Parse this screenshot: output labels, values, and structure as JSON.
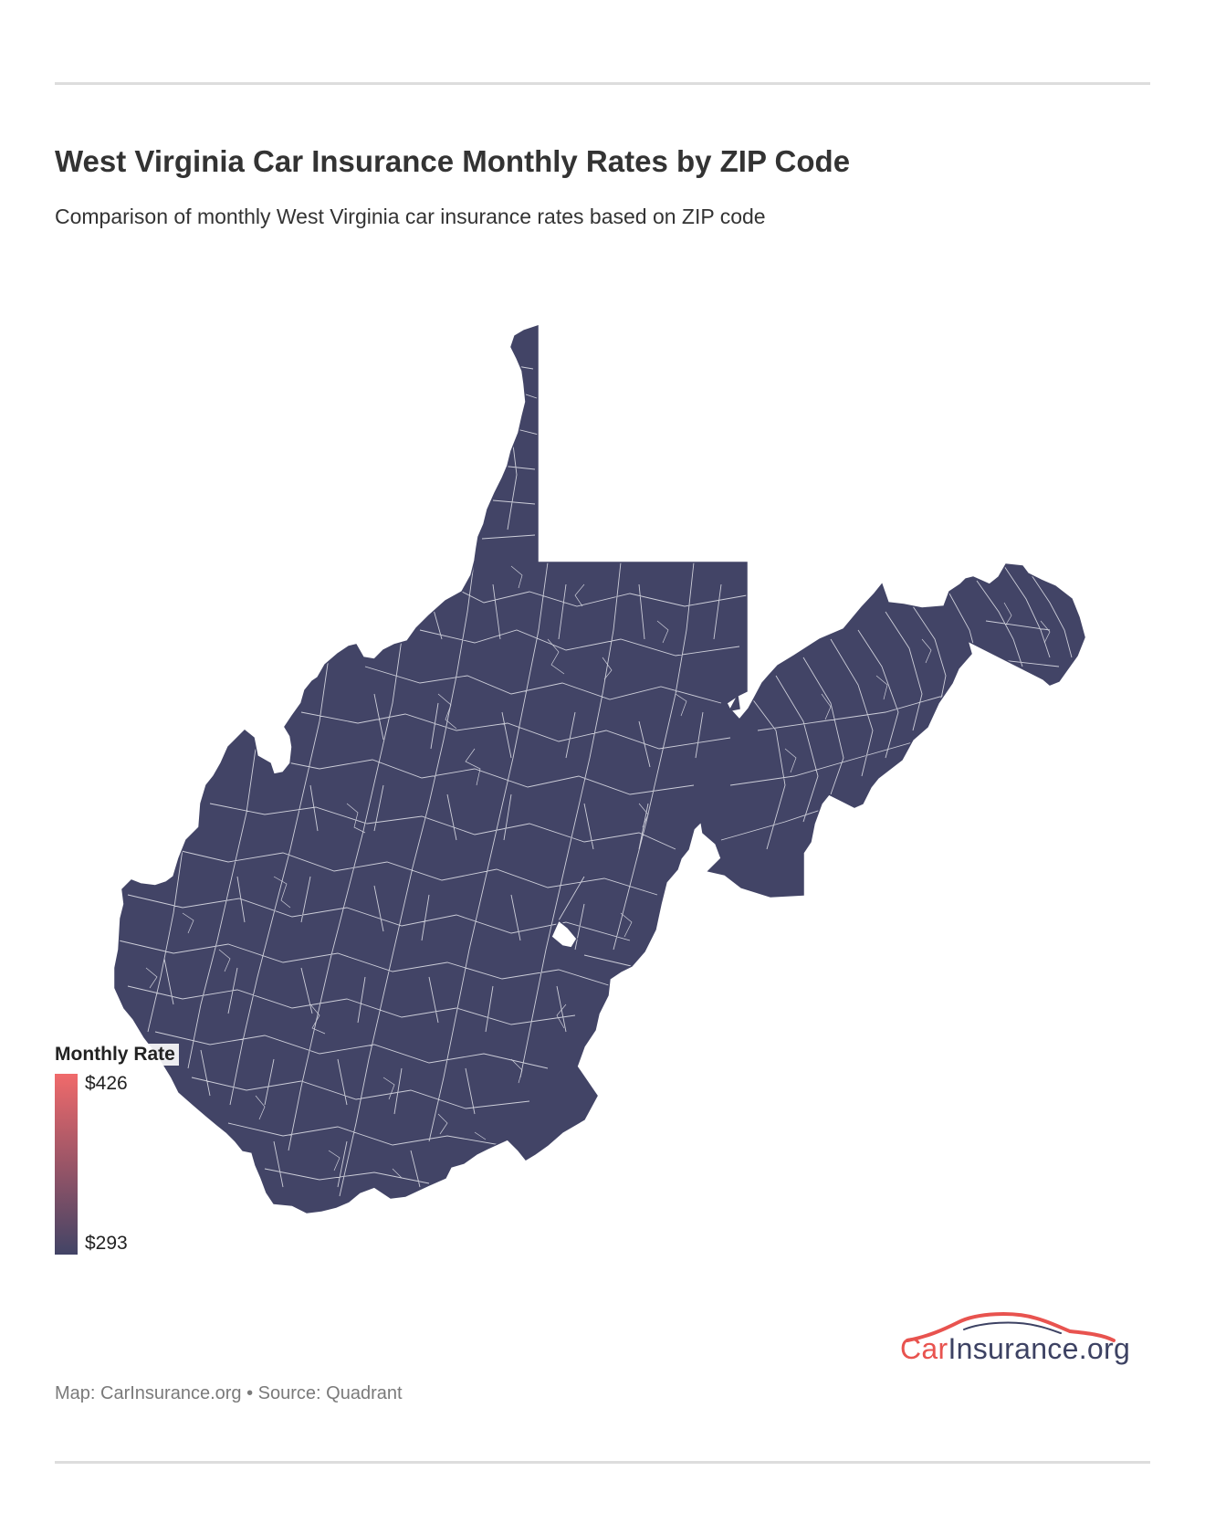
{
  "header": {
    "title": "West Virginia Car Insurance Monthly Rates by ZIP Code",
    "subtitle": "Comparison of monthly West Virginia car insurance rates based on ZIP code"
  },
  "map": {
    "region": "West Virginia",
    "fill_color": "#424466",
    "border_color": "#ffffff"
  },
  "legend": {
    "title": "Monthly Rate",
    "max_label": "$426",
    "min_label": "$293",
    "max_value": 426,
    "min_value": 293,
    "color_max": "#f06a6b",
    "color_min": "#424466"
  },
  "logo": {
    "brand_part1": "Car",
    "brand_part2": "Insurance.org",
    "icon": "car-silhouette-icon",
    "color_primary": "#e8534f",
    "color_secondary": "#3d4263"
  },
  "footer": {
    "credit": "Map: CarInsurance.org • Source: Quadrant"
  }
}
